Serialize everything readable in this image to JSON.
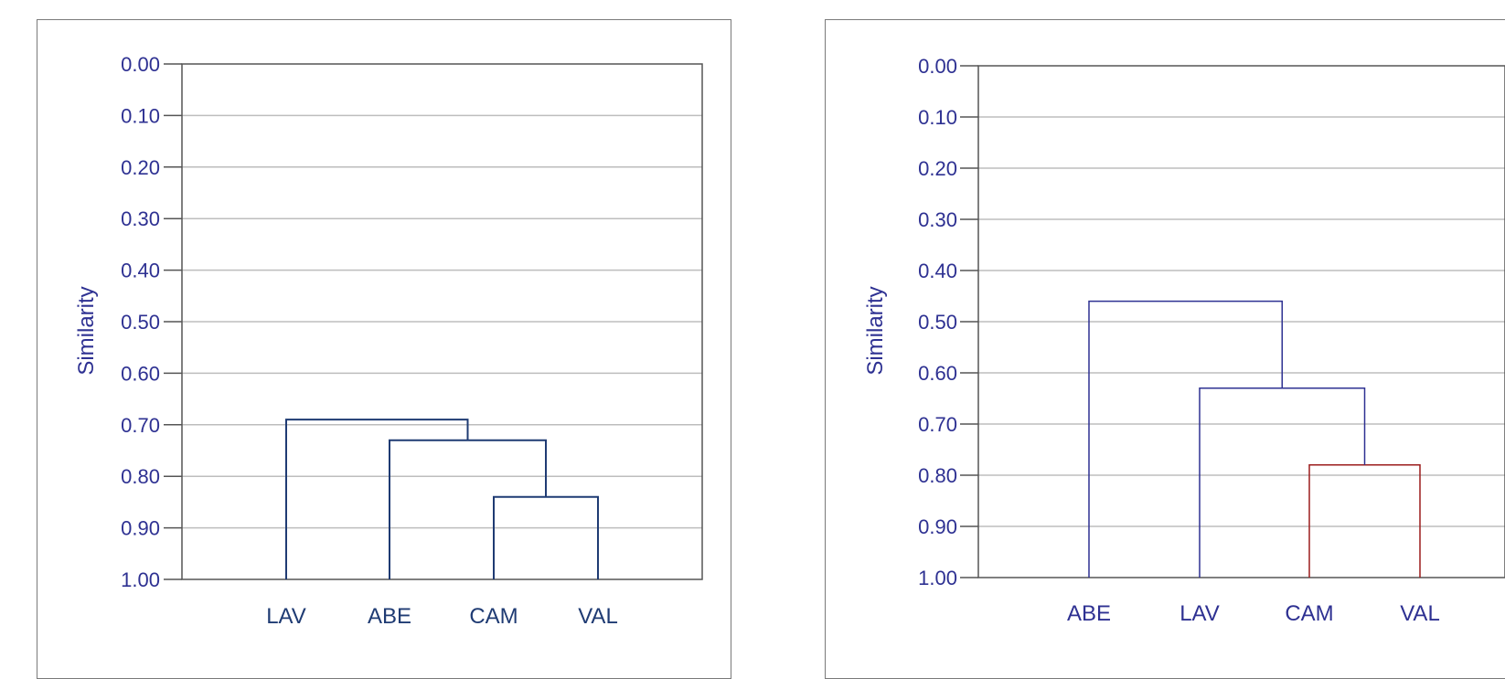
{
  "chart_data": [
    {
      "type": "dendrogram",
      "ylabel": "Similarity",
      "yticks": [
        "0.00",
        "0.10",
        "0.20",
        "0.30",
        "0.40",
        "0.50",
        "0.60",
        "0.70",
        "0.80",
        "0.90",
        "1.00"
      ],
      "ylim": [
        0.0,
        1.0
      ],
      "y_inverted": true,
      "grid": true,
      "leaves": [
        "LAV",
        "ABE",
        "CAM",
        "VAL"
      ],
      "merges": [
        {
          "left": "CAM",
          "right": "VAL",
          "similarity": 0.84
        },
        {
          "left": "ABE",
          "right": "CAM+VAL",
          "similarity": 0.73
        },
        {
          "left": "LAV",
          "right": "ABE+CAM+VAL",
          "similarity": 0.69
        }
      ]
    },
    {
      "type": "dendrogram",
      "ylabel": "Similarity",
      "yticks": [
        "0.00",
        "0.10",
        "0.20",
        "0.30",
        "0.40",
        "0.50",
        "0.60",
        "0.70",
        "0.80",
        "0.90",
        "1.00"
      ],
      "ylim": [
        0.0,
        1.0
      ],
      "y_inverted": true,
      "grid": true,
      "leaves": [
        "ABE",
        "LAV",
        "CAM",
        "VAL"
      ],
      "merges": [
        {
          "left": "CAM",
          "right": "VAL",
          "similarity": 0.78
        },
        {
          "left": "LAV",
          "right": "CAM+VAL",
          "similarity": 0.63
        },
        {
          "left": "ABE",
          "right": "LAV+CAM+VAL",
          "similarity": 0.46
        }
      ]
    }
  ],
  "colors": {
    "text": "#2e3192",
    "left_category_text": "#1f3b73",
    "left_lines": "#1f3b73",
    "right_lines": "#2e3192",
    "right_highlight_branch": "#9b1c1c",
    "grid": "#bdbdbd",
    "axis": "#555555"
  }
}
